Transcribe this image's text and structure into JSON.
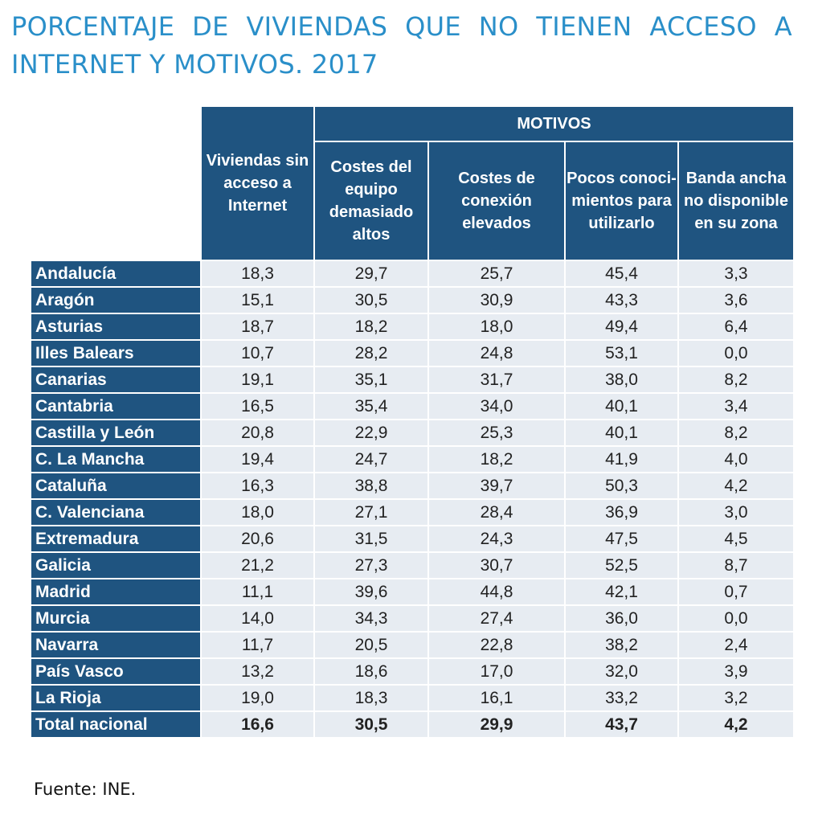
{
  "title": "PORCENTAJE DE VIVIENDAS QUE NO TIENEN ACCESO A INTERNET Y MOTIVOS. 2017",
  "source": "Fuente: INE.",
  "colors": {
    "header_bg": "#1f5480",
    "cell_bg": "#e7ecf2",
    "title": "#2a8fc9"
  },
  "chart_data": {
    "type": "table",
    "group_header": "MOTIVOS",
    "columns": [
      "Viviendas sin acceso a Internet",
      "Costes del equipo demasiado altos",
      "Costes de conexión elevados",
      "Pocos conoci-mientos para utilizarlo",
      "Banda ancha no disponible en su zona"
    ],
    "rows": [
      {
        "region": "Andalucía",
        "values": [
          "18,3",
          "29,7",
          "25,7",
          "45,4",
          "3,3"
        ]
      },
      {
        "region": "Aragón",
        "values": [
          "15,1",
          "30,5",
          "30,9",
          "43,3",
          "3,6"
        ]
      },
      {
        "region": "Asturias",
        "values": [
          "18,7",
          "18,2",
          "18,0",
          "49,4",
          "6,4"
        ]
      },
      {
        "region": "Illes Balears",
        "values": [
          "10,7",
          "28,2",
          "24,8",
          "53,1",
          "0,0"
        ]
      },
      {
        "region": "Canarias",
        "values": [
          "19,1",
          "35,1",
          "31,7",
          "38,0",
          "8,2"
        ]
      },
      {
        "region": "Cantabria",
        "values": [
          "16,5",
          "35,4",
          "34,0",
          "40,1",
          "3,4"
        ]
      },
      {
        "region": "Castilla y León",
        "values": [
          "20,8",
          "22,9",
          "25,3",
          "40,1",
          "8,2"
        ]
      },
      {
        "region": "C. La Mancha",
        "values": [
          "19,4",
          "24,7",
          "18,2",
          "41,9",
          "4,0"
        ]
      },
      {
        "region": "Cataluña",
        "values": [
          "16,3",
          "38,8",
          "39,7",
          "50,3",
          "4,2"
        ]
      },
      {
        "region": "C. Valenciana",
        "values": [
          "18,0",
          "27,1",
          "28,4",
          "36,9",
          "3,0"
        ]
      },
      {
        "region": "Extremadura",
        "values": [
          "20,6",
          "31,5",
          "24,3",
          "47,5",
          "4,5"
        ]
      },
      {
        "region": "Galicia",
        "values": [
          "21,2",
          "27,3",
          "30,7",
          "52,5",
          "8,7"
        ]
      },
      {
        "region": "Madrid",
        "values": [
          "11,1",
          "39,6",
          "44,8",
          "42,1",
          "0,7"
        ]
      },
      {
        "region": "Murcia",
        "values": [
          "14,0",
          "34,3",
          "27,4",
          "36,0",
          "0,0"
        ]
      },
      {
        "region": "Navarra",
        "values": [
          "11,7",
          "20,5",
          "22,8",
          "38,2",
          "2,4"
        ]
      },
      {
        "region": "País Vasco",
        "values": [
          "13,2",
          "18,6",
          "17,0",
          "32,0",
          "3,9"
        ]
      },
      {
        "region": "La Rioja",
        "values": [
          "19,0",
          "18,3",
          "16,1",
          "33,2",
          "3,2"
        ]
      }
    ],
    "total": {
      "region": "Total nacional",
      "values": [
        "16,6",
        "30,5",
        "29,9",
        "43,7",
        "4,2"
      ]
    }
  }
}
